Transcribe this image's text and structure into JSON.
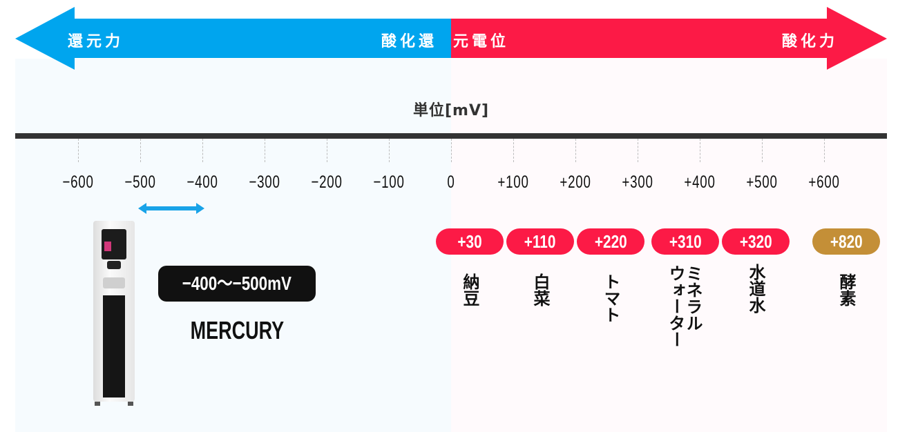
{
  "header": {
    "left_label": "還元力",
    "center_label_blue": "酸化還",
    "center_label_red": "元電位",
    "right_label": "酸化力"
  },
  "unit": "単位[mV]",
  "ticks": [
    "−600",
    "−500",
    "−400",
    "−300",
    "−200",
    "−100",
    "0",
    "+100",
    "+200",
    "+300",
    "+400",
    "+500",
    "+600"
  ],
  "product": {
    "range_label": "−400〜−500mV",
    "name": "MERCURY",
    "range_mv": [
      -500,
      -400
    ]
  },
  "items": [
    {
      "value": "+30",
      "label": "納豆"
    },
    {
      "value": "+110",
      "label": "白菜"
    },
    {
      "value": "+220",
      "label": "トマト"
    },
    {
      "value": "+310",
      "label": "ミネラル",
      "label2": "ウォーター"
    },
    {
      "value": "+320",
      "label": "水道水"
    },
    {
      "value": "+820",
      "label": "酵素"
    }
  ],
  "colors": {
    "reduction": "#00a5ee",
    "oxidation": "#fc1a46",
    "enzyme": "#c48f37",
    "axis": "#333333"
  }
}
